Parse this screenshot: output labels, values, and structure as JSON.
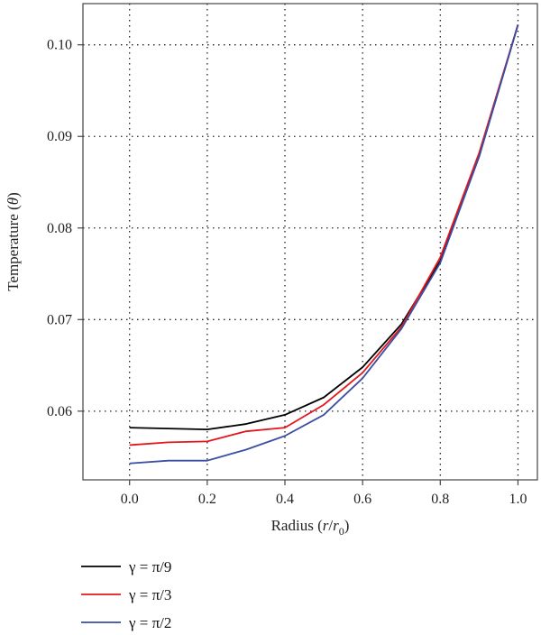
{
  "chart_data": {
    "type": "line",
    "title": "",
    "xlabel": {
      "prefix": "Radius (",
      "var": "r",
      "sep": "/",
      "var2": "r",
      "sub": "0",
      "suffix": ")"
    },
    "ylabel": {
      "prefix": "Temperature (",
      "var": "θ",
      "suffix": ")"
    },
    "xlim": [
      -0.12,
      1.05
    ],
    "ylim": [
      0.0525,
      0.1045
    ],
    "xticks": [
      0.0,
      0.2,
      0.4,
      0.6,
      0.8,
      1.0
    ],
    "xtick_labels": [
      "0.0",
      "0.2",
      "0.4",
      "0.6",
      "0.8",
      "1.0"
    ],
    "yticks": [
      0.06,
      0.07,
      0.08,
      0.09,
      0.1
    ],
    "ytick_labels": [
      "0.06",
      "0.07",
      "0.08",
      "0.09",
      "0.10"
    ],
    "grid": true,
    "legend_position": "bottom-left",
    "x": [
      0.0,
      0.1,
      0.2,
      0.3,
      0.4,
      0.5,
      0.6,
      0.7,
      0.8,
      0.9,
      1.0
    ],
    "series": [
      {
        "name": "γ = π/9",
        "color": "#000000",
        "values": [
          0.0582,
          0.0581,
          0.058,
          0.0586,
          0.0596,
          0.0615,
          0.0648,
          0.0695,
          0.0764,
          0.0878,
          0.1022
        ]
      },
      {
        "name": "γ = π/3",
        "color": "#e4161b",
        "values": [
          0.0563,
          0.0566,
          0.0567,
          0.0578,
          0.0582,
          0.0607,
          0.0642,
          0.0692,
          0.0768,
          0.0882,
          0.1022
        ]
      },
      {
        "name": "γ = π/2",
        "color": "#3a4ea3",
        "values": [
          0.0543,
          0.0546,
          0.0546,
          0.0558,
          0.0573,
          0.0596,
          0.0636,
          0.069,
          0.0762,
          0.0878,
          0.1022
        ]
      }
    ]
  }
}
